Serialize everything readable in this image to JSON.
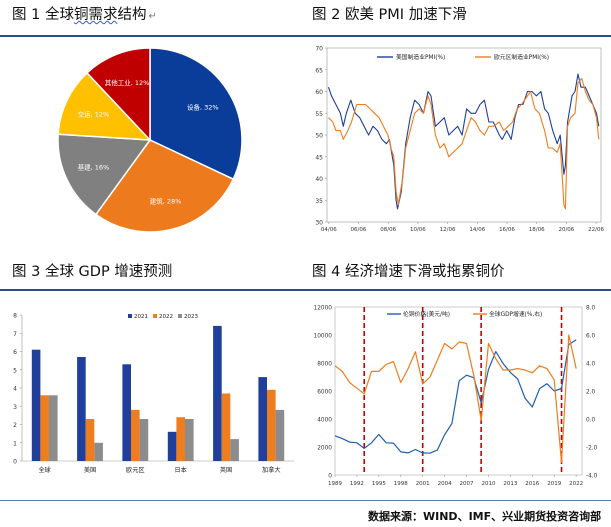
{
  "titles": {
    "fig1": "图 1 全球铜需求结构",
    "fig1_main": "图 1 全球",
    "fig1_underlined": "铜需求",
    "fig1_tail": "结构",
    "fig2": "图 2 欧美 PMI 加速下滑",
    "fig3": "图 3 全球 GDP 增速预测",
    "fig4": "图 4 经济增速下滑或拖累铜价"
  },
  "source_note": "数据来源：WIND、IMF、兴业期货投资咨询部",
  "colors": {
    "rule": "#2a4f88",
    "blue": "#1f3f9a",
    "orange": "#ee7d1f",
    "gray": "#8c8c8c",
    "yellow": "#ffc000",
    "darkred": "#c00000",
    "dashed_red": "#c00000"
  },
  "chart_data": [
    {
      "type": "pie",
      "title": "",
      "slices": [
        {
          "label": "设备, 32%",
          "value": 32,
          "color": "#0a3d9a"
        },
        {
          "label": "建筑, 28%",
          "value": 28,
          "color": "#ee7a1e"
        },
        {
          "label": "基建, 16%",
          "value": 16,
          "color": "#808080"
        },
        {
          "label": "交运, 12%",
          "value": 12,
          "color": "#ffc000"
        },
        {
          "label": "其他工业, 12%",
          "value": 12,
          "color": "#c00000"
        }
      ]
    },
    {
      "type": "line",
      "title": "",
      "ylim": [
        30,
        70
      ],
      "yticks": [
        30,
        35,
        40,
        45,
        50,
        55,
        60,
        65,
        70
      ],
      "xticks": [
        "04/06",
        "06/06",
        "08/06",
        "10/06",
        "12/06",
        "14/06",
        "16/06",
        "18/06",
        "20/06",
        "22/06"
      ],
      "series": [
        {
          "name": "美国制造业PMI(%)",
          "color": "#1f3f9a",
          "values": [
            [
              2004.4,
              61
            ],
            [
              2004.6,
              59
            ],
            [
              2004.9,
              57
            ],
            [
              2005.2,
              55
            ],
            [
              2005.4,
              52
            ],
            [
              2005.6,
              55
            ],
            [
              2005.9,
              58
            ],
            [
              2006.2,
              55
            ],
            [
              2006.5,
              54
            ],
            [
              2006.8,
              52
            ],
            [
              2007.1,
              50
            ],
            [
              2007.4,
              52
            ],
            [
              2007.7,
              51
            ],
            [
              2008.0,
              49
            ],
            [
              2008.3,
              48
            ],
            [
              2008.5,
              49
            ],
            [
              2008.8,
              43
            ],
            [
              2008.95,
              35
            ],
            [
              2009.05,
              33
            ],
            [
              2009.3,
              37
            ],
            [
              2009.6,
              48
            ],
            [
              2009.9,
              54
            ],
            [
              2010.2,
              58
            ],
            [
              2010.5,
              57
            ],
            [
              2010.8,
              55
            ],
            [
              2011.1,
              60
            ],
            [
              2011.3,
              59
            ],
            [
              2011.6,
              52
            ],
            [
              2011.9,
              53
            ],
            [
              2012.2,
              54
            ],
            [
              2012.5,
              50
            ],
            [
              2012.8,
              51
            ],
            [
              2013.1,
              52
            ],
            [
              2013.4,
              50
            ],
            [
              2013.7,
              56
            ],
            [
              2014.0,
              55
            ],
            [
              2014.3,
              55
            ],
            [
              2014.6,
              57
            ],
            [
              2014.9,
              58
            ],
            [
              2015.2,
              53
            ],
            [
              2015.5,
              53
            ],
            [
              2015.9,
              50
            ],
            [
              2016.1,
              49
            ],
            [
              2016.4,
              51
            ],
            [
              2016.7,
              49
            ],
            [
              2016.95,
              54
            ],
            [
              2017.2,
              57
            ],
            [
              2017.5,
              57
            ],
            [
              2017.8,
              60
            ],
            [
              2018.1,
              60
            ],
            [
              2018.4,
              59
            ],
            [
              2018.7,
              60
            ],
            [
              2018.95,
              56
            ],
            [
              2019.2,
              55
            ],
            [
              2019.5,
              51
            ],
            [
              2019.8,
              48
            ],
            [
              2020.0,
              50
            ],
            [
              2020.25,
              41
            ],
            [
              2020.35,
              43
            ],
            [
              2020.5,
              53
            ],
            [
              2020.8,
              59
            ],
            [
              2021.0,
              60
            ],
            [
              2021.2,
              64
            ],
            [
              2021.4,
              61
            ],
            [
              2021.7,
              61
            ],
            [
              2021.95,
              59
            ],
            [
              2022.2,
              57
            ],
            [
              2022.45,
              55
            ],
            [
              2022.6,
              52
            ]
          ]
        },
        {
          "name": "欧元区制造业PMI(%)",
          "color": "#ee7d1f",
          "values": [
            [
              2004.4,
              54
            ],
            [
              2004.7,
              53
            ],
            [
              2004.9,
              51
            ],
            [
              2005.2,
              51
            ],
            [
              2005.4,
              49
            ],
            [
              2005.7,
              51
            ],
            [
              2005.95,
              53
            ],
            [
              2006.3,
              57
            ],
            [
              2006.6,
              57
            ],
            [
              2006.9,
              57
            ],
            [
              2007.2,
              56
            ],
            [
              2007.5,
              55
            ],
            [
              2007.8,
              54
            ],
            [
              2008.1,
              52
            ],
            [
              2008.4,
              50
            ],
            [
              2008.6,
              47
            ],
            [
              2008.8,
              45
            ],
            [
              2008.95,
              37
            ],
            [
              2009.1,
              34
            ],
            [
              2009.4,
              40
            ],
            [
              2009.6,
              47
            ],
            [
              2009.9,
              51
            ],
            [
              2010.2,
              55
            ],
            [
              2010.5,
              56
            ],
            [
              2010.8,
              55
            ],
            [
              2011.1,
              59
            ],
            [
              2011.3,
              57
            ],
            [
              2011.6,
              50
            ],
            [
              2011.9,
              47
            ],
            [
              2012.2,
              48
            ],
            [
              2012.5,
              45
            ],
            [
              2012.8,
              46
            ],
            [
              2013.1,
              47
            ],
            [
              2013.4,
              48
            ],
            [
              2013.7,
              51
            ],
            [
              2014.0,
              54
            ],
            [
              2014.3,
              53
            ],
            [
              2014.6,
              51
            ],
            [
              2014.9,
              50
            ],
            [
              2015.2,
              52
            ],
            [
              2015.5,
              52
            ],
            [
              2015.9,
              53
            ],
            [
              2016.2,
              51
            ],
            [
              2016.5,
              52
            ],
            [
              2016.8,
              53
            ],
            [
              2017.1,
              56
            ],
            [
              2017.4,
              57
            ],
            [
              2017.8,
              59
            ],
            [
              2018.0,
              60
            ],
            [
              2018.3,
              56
            ],
            [
              2018.6,
              55
            ],
            [
              2018.95,
              51
            ],
            [
              2019.2,
              47
            ],
            [
              2019.5,
              47
            ],
            [
              2019.8,
              46
            ],
            [
              2020.0,
              48
            ],
            [
              2020.25,
              34
            ],
            [
              2020.35,
              33
            ],
            [
              2020.5,
              52
            ],
            [
              2020.7,
              54
            ],
            [
              2021.0,
              55
            ],
            [
              2021.2,
              62
            ],
            [
              2021.45,
              63
            ],
            [
              2021.7,
              60
            ],
            [
              2021.95,
              58
            ],
            [
              2022.2,
              57
            ],
            [
              2022.45,
              54
            ],
            [
              2022.6,
              49
            ]
          ]
        }
      ]
    },
    {
      "type": "bar",
      "title": "",
      "categories": [
        "全球",
        "美国",
        "欧元区",
        "日本",
        "英国",
        "加拿大"
      ],
      "ylim": [
        0,
        8
      ],
      "yticks": [
        0,
        1,
        2,
        3,
        4,
        5,
        6,
        7,
        8
      ],
      "series": [
        {
          "name": "2021",
          "color": "#1f3f9a",
          "values": [
            6.1,
            5.7,
            5.3,
            1.6,
            7.4,
            4.6
          ]
        },
        {
          "name": "2022",
          "color": "#ee7d1f",
          "values": [
            3.6,
            2.3,
            2.8,
            2.4,
            3.7,
            3.9
          ]
        },
        {
          "name": "2023",
          "color": "#8c8c8c",
          "values": [
            3.6,
            1.0,
            2.3,
            2.3,
            1.2,
            2.8
          ]
        }
      ]
    },
    {
      "type": "line",
      "title": "",
      "xlim": [
        1989,
        2022.8
      ],
      "xticks": [
        "1989",
        "1992",
        "1995",
        "1998",
        "2001",
        "2004",
        "2007",
        "2010",
        "2013",
        "2016",
        "2019",
        "2022"
      ],
      "ylim_left": [
        0,
        12000
      ],
      "yticks_left": [
        0,
        2000,
        4000,
        6000,
        8000,
        10000,
        12000
      ],
      "ylim_right": [
        -4.0,
        8.0
      ],
      "yticks_right": [
        "-4.0",
        "-2.0",
        "0.0",
        "2.0",
        "4.0",
        "6.0",
        "8.0"
      ],
      "recession_lines": [
        1993,
        2001,
        2009,
        2020
      ],
      "series": [
        {
          "name": "伦铜价格(美元/吨)",
          "axis": "left",
          "color": "#1f5fb0",
          "values": [
            [
              1989,
              2800
            ],
            [
              1990,
              2600
            ],
            [
              1991,
              2350
            ],
            [
              1992,
              2300
            ],
            [
              1993,
              1900
            ],
            [
              1994,
              2300
            ],
            [
              1995,
              2900
            ],
            [
              1996,
              2300
            ],
            [
              1997,
              2280
            ],
            [
              1998,
              1650
            ],
            [
              1999,
              1580
            ],
            [
              2000,
              1820
            ],
            [
              2001,
              1580
            ],
            [
              2002,
              1560
            ],
            [
              2003,
              1780
            ],
            [
              2004,
              2870
            ],
            [
              2005,
              3680
            ],
            [
              2006,
              6730
            ],
            [
              2007,
              7130
            ],
            [
              2008,
              6950
            ],
            [
              2009,
              5150
            ],
            [
              2010,
              7540
            ],
            [
              2011,
              8820
            ],
            [
              2012,
              7960
            ],
            [
              2013,
              7330
            ],
            [
              2014,
              6860
            ],
            [
              2015,
              5490
            ],
            [
              2016,
              4860
            ],
            [
              2017,
              6170
            ],
            [
              2018,
              6520
            ],
            [
              2019,
              6000
            ],
            [
              2020,
              6180
            ],
            [
              2021,
              9320
            ],
            [
              2022,
              9650
            ]
          ]
        },
        {
          "name": "全球GDP增速(%,右)",
          "axis": "right",
          "color": "#ee7d1f",
          "values": [
            [
              1989,
              3.8
            ],
            [
              1990,
              3.4
            ],
            [
              1991,
              2.6
            ],
            [
              1992,
              2.2
            ],
            [
              1993,
              1.8
            ],
            [
              1994,
              3.4
            ],
            [
              1995,
              3.4
            ],
            [
              1996,
              3.9
            ],
            [
              1997,
              4.1
            ],
            [
              1998,
              2.6
            ],
            [
              1999,
              3.6
            ],
            [
              2000,
              4.8
            ],
            [
              2001,
              2.5
            ],
            [
              2002,
              3.0
            ],
            [
              2003,
              4.2
            ],
            [
              2004,
              5.4
            ],
            [
              2005,
              5.0
            ],
            [
              2006,
              5.5
            ],
            [
              2007,
              5.4
            ],
            [
              2008,
              3.1
            ],
            [
              2009,
              -0.1
            ],
            [
              2010,
              5.4
            ],
            [
              2011,
              4.3
            ],
            [
              2012,
              3.5
            ],
            [
              2013,
              3.5
            ],
            [
              2014,
              3.6
            ],
            [
              2015,
              3.5
            ],
            [
              2016,
              3.3
            ],
            [
              2017,
              3.8
            ],
            [
              2018,
              3.6
            ],
            [
              2019,
              2.8
            ],
            [
              2020,
              -3.1
            ],
            [
              2021,
              6.0
            ],
            [
              2022,
              3.6
            ]
          ]
        }
      ]
    }
  ]
}
